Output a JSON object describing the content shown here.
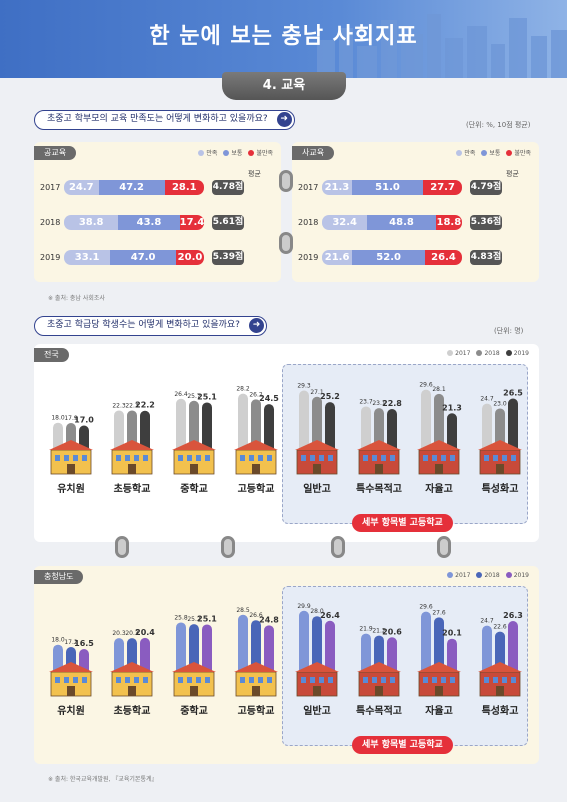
{
  "header": {
    "title": "한 눈에 보는 충남 사회지표",
    "section": "4. 교육"
  },
  "q1": {
    "question": "초중고 학부모의 교육 만족도는 어떻게 변화하고 있을까요?",
    "unit": "(단위: %, 10점 평균)"
  },
  "q2": {
    "question": "초중고 학급당 학생수는 어떻게 변화하고 있을까요?",
    "unit": "(단위: 명)"
  },
  "source1": "※ 출처: 충남 사회조사",
  "source2": "※ 출처: 한국교육개발원, 『교육기본통계』",
  "subgroup_label": "세부 항목별 고등학교",
  "chart_data": [
    {
      "type": "bar",
      "title": "공교육",
      "legend": [
        "만족",
        "보통",
        "불만족"
      ],
      "avg_label": "평균",
      "colors": [
        "#b9c3e6",
        "#7f96d8",
        "#e5303a"
      ],
      "rows": [
        {
          "year": "2017",
          "values": [
            24.7,
            47.2,
            28.1
          ],
          "avg": "4.78점"
        },
        {
          "year": "2018",
          "values": [
            38.8,
            43.8,
            17.4
          ],
          "avg": "5.61점"
        },
        {
          "year": "2019",
          "values": [
            33.1,
            47.0,
            20.0
          ],
          "avg": "5.39점"
        }
      ]
    },
    {
      "type": "bar",
      "title": "사교육",
      "legend": [
        "만족",
        "보통",
        "불만족"
      ],
      "avg_label": "평균",
      "colors": [
        "#b9c3e6",
        "#7f96d8",
        "#e5303a"
      ],
      "rows": [
        {
          "year": "2017",
          "values": [
            21.3,
            51.0,
            27.7
          ],
          "avg": "4.79점"
        },
        {
          "year": "2018",
          "values": [
            32.4,
            48.8,
            18.8
          ],
          "avg": "5.36점"
        },
        {
          "year": "2019",
          "values": [
            21.6,
            52.0,
            26.4
          ],
          "avg": "4.83점"
        }
      ]
    },
    {
      "type": "bar",
      "title": "전국",
      "series_names": [
        "2017",
        "2018",
        "2019"
      ],
      "colors": [
        "#cfcfcf",
        "#8c8c8c",
        "#3e3e3e"
      ],
      "categories": [
        "유치원",
        "초등학교",
        "중학교",
        "고등학교",
        "일반고",
        "특수목적고",
        "자율고",
        "특성화고"
      ],
      "values": [
        [
          18.0,
          17.9,
          17.0
        ],
        [
          22.3,
          22.3,
          22.2
        ],
        [
          26.4,
          25.7,
          25.1
        ],
        [
          28.2,
          26.2,
          24.5
        ],
        [
          29.3,
          27.1,
          25.2
        ],
        [
          23.7,
          23.1,
          22.8
        ],
        [
          29.6,
          28.1,
          21.3
        ],
        [
          24.7,
          23.0,
          26.5
        ]
      ]
    },
    {
      "type": "bar",
      "title": "충청남도",
      "series_names": [
        "2017",
        "2018",
        "2019"
      ],
      "colors": [
        "#7f96d8",
        "#4a66b8",
        "#8a5cc0"
      ],
      "categories": [
        "유치원",
        "초등학교",
        "중학교",
        "고등학교",
        "일반고",
        "특수목적고",
        "자율고",
        "특성화고"
      ],
      "values": [
        [
          18.0,
          17.2,
          16.5
        ],
        [
          20.3,
          20.3,
          20.4
        ],
        [
          25.8,
          25.2,
          25.1
        ],
        [
          28.5,
          26.6,
          24.8
        ],
        [
          29.9,
          28.0,
          26.4
        ],
        [
          21.9,
          21.2,
          20.6
        ],
        [
          29.6,
          27.6,
          20.1
        ],
        [
          24.7,
          22.6,
          26.3
        ]
      ]
    }
  ]
}
